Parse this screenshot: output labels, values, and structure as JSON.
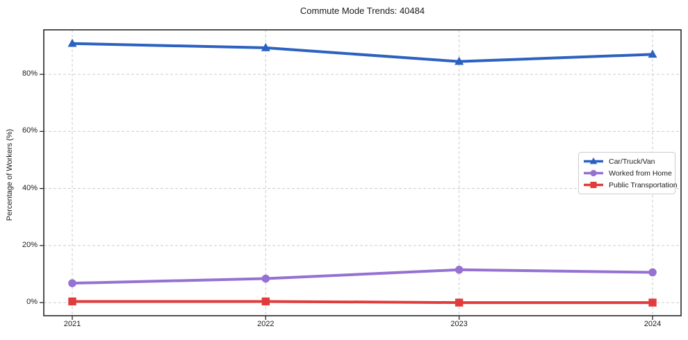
{
  "figure": {
    "background": "#ffffff",
    "axis_color": "#262626",
    "gridline_color": "#cccccc",
    "text_color": "#1a1a1a"
  },
  "chart_data": {
    "type": "line",
    "title": "Commute Mode Trends: 40484",
    "xlabel": "",
    "ylabel": "Percentage of Workers (%)",
    "categories": [
      "2021",
      "2022",
      "2023",
      "2024"
    ],
    "series": [
      {
        "name": "Car/Truck/Van",
        "color": "#2b62c0",
        "marker": "triangle",
        "values": [
          90.8,
          89.3,
          84.5,
          87.0
        ]
      },
      {
        "name": "Worked from Home",
        "color": "#9571d2",
        "marker": "circle",
        "values": [
          6.8,
          8.4,
          11.5,
          10.6
        ]
      },
      {
        "name": "Public Transportation",
        "color": "#e03c3c",
        "marker": "square",
        "values": [
          0.4,
          0.4,
          0.0,
          0.0
        ]
      }
    ],
    "y_ticks": [
      {
        "label": "0%",
        "value": 0
      },
      {
        "label": "20%",
        "value": 20
      },
      {
        "label": "40%",
        "value": 40
      },
      {
        "label": "60%",
        "value": 60
      },
      {
        "label": "80%",
        "value": 80
      }
    ],
    "ylim": [
      -4.6,
      95.6
    ],
    "grid": "dashed-both-axes",
    "legend_position": "center-right"
  }
}
